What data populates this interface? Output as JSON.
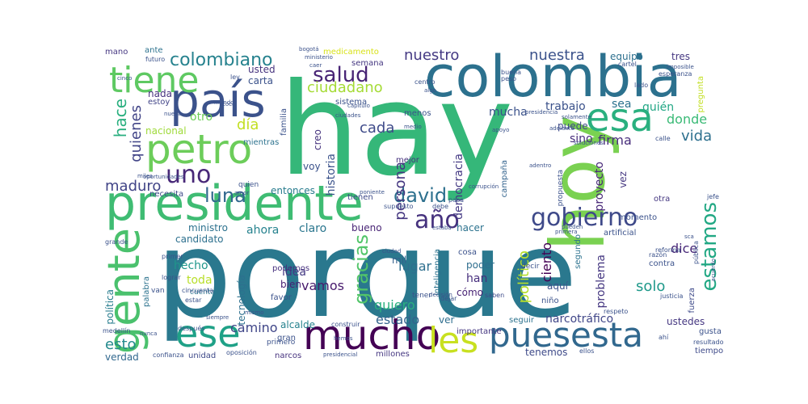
{
  "word_cloud": {
    "words": [
      {
        "text": "porque",
        "color": "#2a788e"
      },
      {
        "text": "hay",
        "color": "#35b779"
      },
      {
        "text": "colombia",
        "color": "#2c718e"
      },
      {
        "text": "hoy",
        "color": "#7ad151"
      },
      {
        "text": "presidente",
        "color": "#3fbc73"
      },
      {
        "text": "país",
        "color": "#3b528b"
      },
      {
        "text": "petro",
        "color": "#6ccd5a"
      },
      {
        "text": "tiene",
        "color": "#5ec962"
      },
      {
        "text": "esa",
        "color": "#2ab07f"
      },
      {
        "text": "gente",
        "color": "#4ac16d"
      },
      {
        "text": "mucho",
        "color": "#440154"
      },
      {
        "text": "ese",
        "color": "#1fa187"
      },
      {
        "text": "puesesta",
        "color": "#31688e"
      },
      {
        "text": "les",
        "color": "#c8e020"
      },
      {
        "text": "uno",
        "color": "#482878"
      },
      {
        "text": "gobierno",
        "color": "#3e4989"
      },
      {
        "text": "año",
        "color": "#46327e"
      },
      {
        "text": "david",
        "color": "#2d708e"
      },
      {
        "text": "colombiano",
        "color": "#26828e"
      },
      {
        "text": "salud",
        "color": "#482475"
      },
      {
        "text": "luna",
        "color": "#31688e"
      },
      {
        "text": "estamos",
        "color": "#22a884"
      },
      {
        "text": "gracias",
        "color": "#52c569"
      },
      {
        "text": "hace",
        "color": "#29af7f"
      },
      {
        "text": "ciudadano",
        "color": "#a5db36"
      },
      {
        "text": "nuestra",
        "color": "#3b528b"
      },
      {
        "text": "nuestro",
        "color": "#443983"
      },
      {
        "text": "maduro",
        "color": "#414487"
      },
      {
        "text": "quienes",
        "color": "#414487"
      },
      {
        "text": "día",
        "color": "#c2df23"
      },
      {
        "text": "otro",
        "color": "#6ece58"
      },
      {
        "text": "persona",
        "color": "#453781"
      },
      {
        "text": "cada",
        "color": "#3e4a89"
      },
      {
        "text": "vida",
        "color": "#2d708e"
      },
      {
        "text": "firma",
        "color": "#472d7b"
      },
      {
        "text": "donde",
        "color": "#3aba76"
      },
      {
        "text": "dice",
        "color": "#482878"
      },
      {
        "text": "esto",
        "color": "#238a8d"
      },
      {
        "text": "solo",
        "color": "#1f998a"
      },
      {
        "text": "quiero",
        "color": "#2ab07f"
      },
      {
        "text": "vamos",
        "color": "#481b6d"
      },
      {
        "text": "lugar",
        "color": "#2e6f8e"
      },
      {
        "text": "mucha",
        "color": "#3b528b"
      },
      {
        "text": "estado",
        "color": "#33638d"
      },
      {
        "text": "político",
        "color": "#b5de2b"
      },
      {
        "text": "ciento",
        "color": "#440154"
      },
      {
        "text": "camino",
        "color": "#404688"
      },
      {
        "text": "democracia",
        "color": "#443983"
      },
      {
        "text": "historia",
        "color": "#3b528b"
      },
      {
        "text": "sino",
        "color": "#472d7b"
      },
      {
        "text": "ahora",
        "color": "#26828e"
      },
      {
        "text": "trabajo",
        "color": "#3b528b"
      },
      {
        "text": "sea",
        "color": "#2c728e"
      },
      {
        "text": "quién",
        "color": "#22a785"
      },
      {
        "text": "proyecto",
        "color": "#482878"
      },
      {
        "text": "puede",
        "color": "#3e4a89"
      },
      {
        "text": "tenemos",
        "color": "#3e4a89"
      },
      {
        "text": "narcotráfico",
        "color": "#404688"
      },
      {
        "text": "problema",
        "color": "#453781"
      },
      {
        "text": "ustedes",
        "color": "#453781"
      },
      {
        "text": "claro",
        "color": "#2a768e"
      },
      {
        "text": "bueno",
        "color": "#482475"
      },
      {
        "text": "hacer",
        "color": "#2c728e"
      },
      {
        "text": "usted",
        "color": "#46337e"
      },
      {
        "text": "carta",
        "color": "#3b528b"
      },
      {
        "text": "nada",
        "color": "#46327e"
      },
      {
        "text": "estoy",
        "color": "#414487"
      },
      {
        "text": "nacional",
        "color": "#9fda3a"
      },
      {
        "text": "ministro",
        "color": "#2c718e"
      },
      {
        "text": "candidato",
        "color": "#2d708e"
      },
      {
        "text": "hecho",
        "color": "#1f968b"
      },
      {
        "text": "toda",
        "color": "#b8de29"
      },
      {
        "text": "idea",
        "color": "#443983"
      },
      {
        "text": "bien",
        "color": "#482173"
      },
      {
        "text": "mil",
        "color": "#35608d"
      },
      {
        "text": "han",
        "color": "#472f7d"
      },
      {
        "text": "aquí",
        "color": "#3b528b"
      },
      {
        "text": "cómo",
        "color": "#482475"
      },
      {
        "text": "poder",
        "color": "#2e6e8e"
      },
      {
        "text": "tecnología",
        "color": "#2d708e"
      },
      {
        "text": "política",
        "color": "#287d8e"
      },
      {
        "text": "podemos",
        "color": "#46307e"
      },
      {
        "text": "alcalde",
        "color": "#26828e"
      },
      {
        "text": "gran",
        "color": "#3b528b"
      },
      {
        "text": "verdad",
        "color": "#31688e"
      },
      {
        "text": "unidad",
        "color": "#3e4989"
      },
      {
        "text": "narcos",
        "color": "#46327e"
      },
      {
        "text": "millones",
        "color": "#453781"
      },
      {
        "text": "tiempo",
        "color": "#3e4a89"
      },
      {
        "text": "ver",
        "color": "#2e6e8e"
      },
      {
        "text": "creo",
        "color": "#46337e"
      },
      {
        "text": "entonces",
        "color": "#287c8e"
      },
      {
        "text": "voy",
        "color": "#3b528b"
      },
      {
        "text": "mejor",
        "color": "#46327e"
      },
      {
        "text": "campaña",
        "color": "#33638d"
      },
      {
        "text": "vez",
        "color": "#453781"
      },
      {
        "text": "tres",
        "color": "#453781"
      },
      {
        "text": "equipo",
        "color": "#2d708e"
      },
      {
        "text": "mano",
        "color": "#453781"
      },
      {
        "text": "ante",
        "color": "#2c728e"
      },
      {
        "text": "medicamento",
        "color": "#d8e219"
      },
      {
        "text": "semana",
        "color": "#453781"
      },
      {
        "text": "sistema",
        "color": "#3b528b"
      },
      {
        "text": "familia",
        "color": "#3b528b"
      },
      {
        "text": "mientras",
        "color": "#2c728e"
      },
      {
        "text": "necesita",
        "color": "#3e4a89"
      },
      {
        "text": "menos",
        "color": "#3b528b"
      },
      {
        "text": "tienen",
        "color": "#3e4a89"
      },
      {
        "text": "otra",
        "color": "#453781"
      },
      {
        "text": "momento",
        "color": "#3b528b"
      },
      {
        "text": "pregunta",
        "color": "#c2df23"
      },
      {
        "text": "fuerza",
        "color": "#3e4a89"
      },
      {
        "text": "gusta",
        "color": "#3b528b"
      },
      {
        "text": "contra",
        "color": "#3b528b"
      },
      {
        "text": "segundo",
        "color": "#2c728e"
      },
      {
        "text": "niño",
        "color": "#3b528b"
      },
      {
        "text": "importante",
        "color": "#453781"
      },
      {
        "text": "seguir",
        "color": "#2c728e"
      },
      {
        "text": "artificial",
        "color": "#3b528b"
      },
      {
        "text": "inteligencia",
        "color": "#2c728e"
      },
      {
        "text": "cosa",
        "color": "#3b528b"
      },
      {
        "text": "favor",
        "color": "#3b528b"
      },
      {
        "text": "palabra",
        "color": "#2c728e"
      },
      {
        "text": "cuenta",
        "color": "#2c728e"
      },
      {
        "text": "saben",
        "color": "#3e4a89"
      },
      {
        "text": "primero",
        "color": "#3b528b"
      },
      {
        "text": "ellos",
        "color": "#3b528b"
      },
      {
        "text": "oposición",
        "color": "#3b528b"
      },
      {
        "text": "confianza",
        "color": "#3b528b"
      },
      {
        "text": "después",
        "color": "#3b528b"
      },
      {
        "text": "medellín",
        "color": "#3b528b"
      },
      {
        "text": "resultado",
        "color": "#3b528b"
      },
      {
        "text": "reforma",
        "color": "#3b528b"
      },
      {
        "text": "pública",
        "color": "#3b528b"
      },
      {
        "text": "razón",
        "color": "#3b528b"
      },
      {
        "text": "justicia",
        "color": "#3b528b"
      },
      {
        "text": "respeto",
        "color": "#3b528b"
      },
      {
        "text": "grande",
        "color": "#3b528b"
      },
      {
        "text": "lograr",
        "color": "#3b528b"
      },
      {
        "text": "estar",
        "color": "#3b528b"
      },
      {
        "text": "cincuenta",
        "color": "#3b528b"
      },
      {
        "text": "primer",
        "color": "#3b528b"
      },
      {
        "text": "pasa",
        "color": "#3b528b"
      },
      {
        "text": "supuesto",
        "color": "#3b528b"
      },
      {
        "text": "debe",
        "color": "#3b528b"
      },
      {
        "text": "quien",
        "color": "#3b528b"
      },
      {
        "text": "esperanza",
        "color": "#3b528b"
      },
      {
        "text": "lado",
        "color": "#3b528b"
      },
      {
        "text": "calle",
        "color": "#3b528b"
      },
      {
        "text": "jefe",
        "color": "#3b528b"
      },
      {
        "text": "ley",
        "color": "#3b528b"
      },
      {
        "text": "peso",
        "color": "#3b528b"
      },
      {
        "text": "buena",
        "color": "#3b528b"
      },
      {
        "text": "centro",
        "color": "#3b528b"
      },
      {
        "text": "algo",
        "color": "#3b528b"
      },
      {
        "text": "cartel",
        "color": "#3b528b"
      },
      {
        "text": "bogotá",
        "color": "#3b528b"
      },
      {
        "text": "ministerio",
        "color": "#3b528b"
      },
      {
        "text": "futuro",
        "color": "#3b528b"
      },
      {
        "text": "cinco",
        "color": "#3b528b"
      },
      {
        "text": "coca",
        "color": "#3b528b"
      },
      {
        "text": "capitulo",
        "color": "#3b528b"
      },
      {
        "text": "ciudades",
        "color": "#3b528b"
      },
      {
        "text": "medio",
        "color": "#3b528b"
      },
      {
        "text": "solamente",
        "color": "#3b528b"
      },
      {
        "text": "corrupción",
        "color": "#3b528b"
      },
      {
        "text": "propuesta",
        "color": "#3b528b"
      },
      {
        "text": "adelante",
        "color": "#3b528b"
      },
      {
        "text": "presidencia",
        "color": "#3b528b"
      },
      {
        "text": "soluciones",
        "color": "#3b528b"
      },
      {
        "text": "amor",
        "color": "#3b528b"
      },
      {
        "text": "mismo",
        "color": "#3b528b"
      },
      {
        "text": "tener",
        "color": "#3b528b"
      },
      {
        "text": "decir",
        "color": "#3b528b"
      },
      {
        "text": "dejar",
        "color": "#3b528b"
      },
      {
        "text": "decisión",
        "color": "#3b528b"
      },
      {
        "text": "construir",
        "color": "#3b528b"
      },
      {
        "text": "hemos",
        "color": "#3b528b"
      },
      {
        "text": "presidencial",
        "color": "#3b528b"
      },
      {
        "text": "ahí",
        "color": "#3b528b"
      },
      {
        "text": "nueva",
        "color": "#3b528b"
      },
      {
        "text": "miles",
        "color": "#3b528b"
      },
      {
        "text": "oportunidades",
        "color": "#3b528b"
      },
      {
        "text": "nunca",
        "color": "#3b528b"
      },
      {
        "text": "siempre",
        "color": "#3b528b"
      },
      {
        "text": "ciudad",
        "color": "#3b528b"
      },
      {
        "text": "van",
        "color": "#3b528b"
      },
      {
        "text": "estaba",
        "color": "#3b528b"
      },
      {
        "text": "poniente",
        "color": "#3b528b"
      },
      {
        "text": "mundo",
        "color": "#3b528b"
      },
      {
        "text": "sca",
        "color": "#3b528b"
      },
      {
        "text": "pueden",
        "color": "#3b528b"
      },
      {
        "text": "primera",
        "color": "#3b528b"
      },
      {
        "text": "caer",
        "color": "#3b528b"
      },
      {
        "text": "apoyo",
        "color": "#3b528b"
      },
      {
        "text": "acuerdo",
        "color": "#3b528b"
      },
      {
        "text": "imposible",
        "color": "#3b528b"
      },
      {
        "text": "adentro",
        "color": "#3b528b"
      }
    ]
  }
}
